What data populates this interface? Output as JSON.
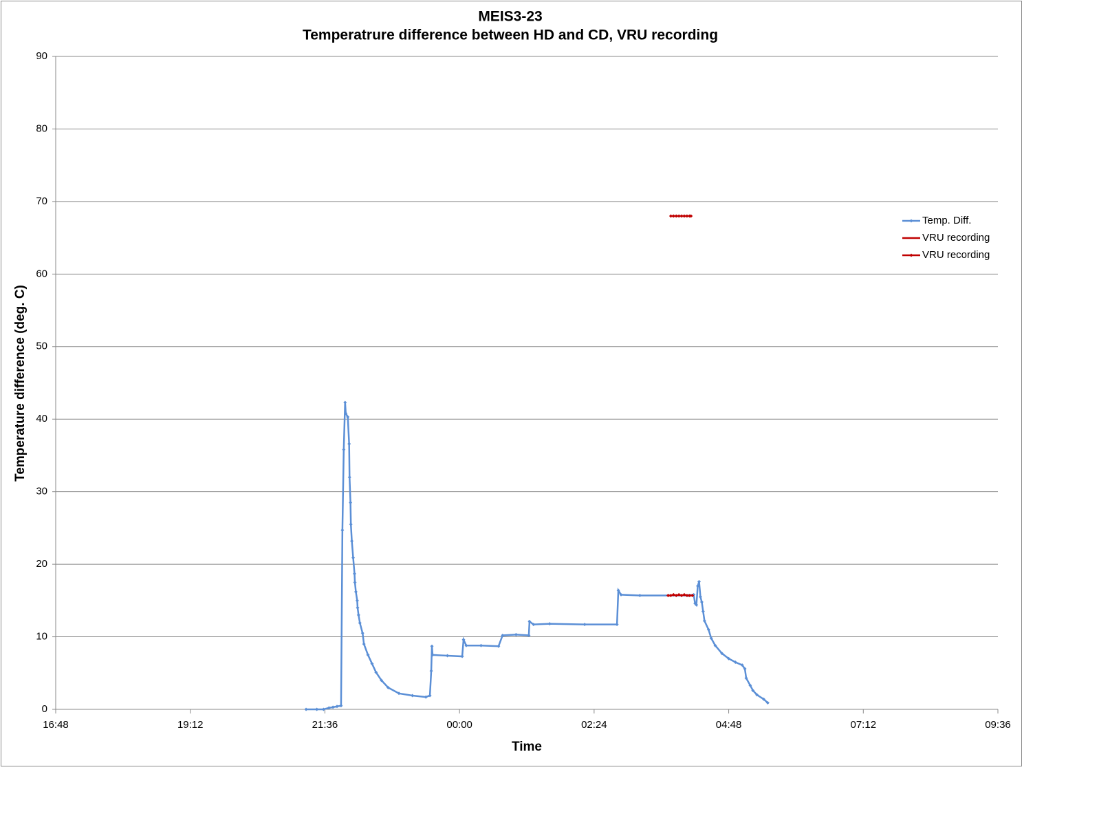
{
  "chart_data": {
    "type": "line",
    "title": "MEIS3-23",
    "subtitle": "Temperatrure difference between HD and CD, VRU recording",
    "x_label": "Time",
    "y_label": "Temperature difference (deg. C)",
    "xlim": [
      0.7,
      1.4
    ],
    "ylim": [
      0,
      90
    ],
    "xticks": [
      {
        "value": 0.7,
        "label": "16:48"
      },
      {
        "value": 0.8,
        "label": "19:12"
      },
      {
        "value": 0.9,
        "label": "21:36"
      },
      {
        "value": 1.0,
        "label": "00:00"
      },
      {
        "value": 1.1,
        "label": "02:24"
      },
      {
        "value": 1.2,
        "label": "04:48"
      },
      {
        "value": 1.3,
        "label": "07:12"
      },
      {
        "value": 1.4,
        "label": "09:36"
      }
    ],
    "yticks": [
      0,
      10,
      20,
      30,
      40,
      50,
      60,
      70,
      80,
      90
    ],
    "grid": true,
    "legend": "right",
    "series": [
      {
        "name": "Temp. Diff.",
        "color": "#5b8fd6",
        "markers": true,
        "x": [
          0.886,
          0.894,
          0.899,
          0.903,
          0.906,
          0.909,
          0.912,
          0.913,
          0.914,
          0.915,
          0.9155,
          0.917,
          0.918,
          0.9183,
          0.919,
          0.9193,
          0.92,
          0.921,
          0.922,
          0.9223,
          0.923,
          0.924,
          0.9243,
          0.925,
          0.926,
          0.928,
          0.929,
          0.932,
          0.935,
          0.938,
          0.942,
          0.947,
          0.955,
          0.965,
          0.975,
          0.978,
          0.979,
          0.9795,
          0.98,
          0.991,
          1.002,
          1.003,
          1.005,
          1.016,
          1.029,
          1.032,
          1.042,
          1.0515,
          1.052,
          1.055,
          1.067,
          1.093,
          1.117,
          1.118,
          1.12,
          1.134,
          1.155,
          1.17,
          1.174,
          1.175,
          1.176,
          1.177,
          1.178,
          1.179,
          1.18,
          1.181,
          1.182,
          1.185,
          1.187,
          1.19,
          1.195,
          1.2,
          1.205,
          1.21,
          1.212,
          1.213,
          1.216,
          1.218,
          1.221,
          1.226,
          1.229
        ],
        "values": [
          0,
          0,
          0,
          0.2,
          0.3,
          0.4,
          0.5,
          24.7,
          35.8,
          42.3,
          40.8,
          40.3,
          36.6,
          32,
          28.5,
          25.5,
          23.2,
          20.9,
          18.7,
          17.5,
          16.2,
          15,
          14,
          13,
          11.9,
          10.5,
          9,
          7.5,
          6.3,
          5.1,
          4,
          3,
          2.2,
          1.9,
          1.7,
          1.9,
          5.3,
          8.7,
          7.5,
          7.4,
          7.3,
          9.6,
          8.8,
          8.8,
          8.7,
          10.2,
          10.3,
          10.2,
          12.1,
          11.7,
          11.8,
          11.7,
          11.7,
          16.4,
          15.8,
          15.7,
          15.7,
          15.7,
          15.8,
          14.6,
          14.4,
          17,
          17.6,
          15.5,
          14.8,
          13.5,
          12.2,
          11,
          9.8,
          8.8,
          7.7,
          7,
          6.5,
          6.1,
          5.6,
          4.3,
          3.3,
          2.6,
          2,
          1.4,
          0.9
        ]
      },
      {
        "name": "VRU recording",
        "color": "#c00000",
        "markers": false,
        "x": [
          1.157,
          1.159,
          1.161,
          1.163,
          1.165,
          1.167,
          1.169,
          1.171,
          1.172
        ],
        "values": [
          68,
          68,
          68,
          68,
          68,
          68,
          68,
          68,
          68
        ]
      },
      {
        "name": "VRU recording",
        "color": "#c00000",
        "markers": true,
        "x": [
          1.155,
          1.157,
          1.159,
          1.161,
          1.163,
          1.165,
          1.167,
          1.169,
          1.171,
          1.173
        ],
        "values": [
          15.7,
          15.7,
          15.8,
          15.7,
          15.8,
          15.7,
          15.8,
          15.7,
          15.7,
          15.7
        ]
      }
    ]
  }
}
